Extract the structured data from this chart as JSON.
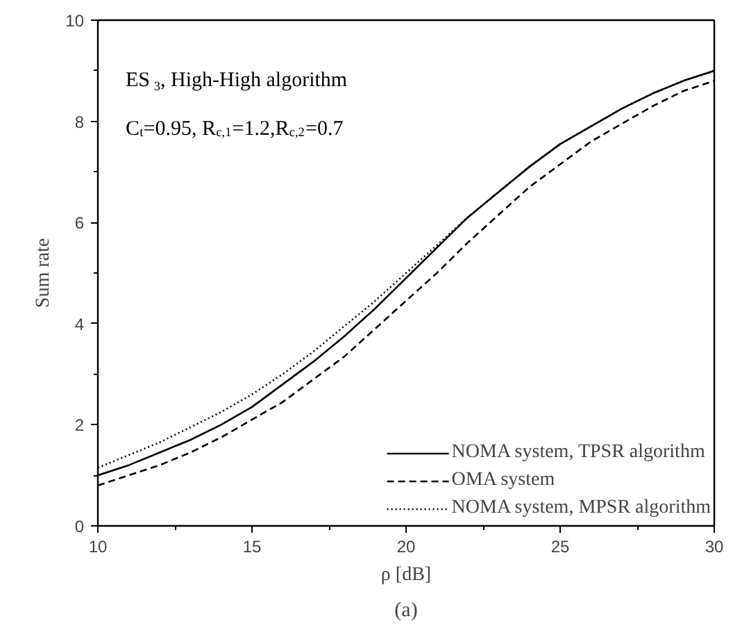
{
  "chart_data": {
    "type": "line",
    "xlabel": "ρ [dB]",
    "ylabel": "Sum rate",
    "annotations": [
      {
        "text": "ES$_{3}$, High-High algorithm"
      },
      {
        "text": "C$_{t}$=0.95, R$_{c,1}$=1.2,R$_{c,2}$=0.7"
      },
      {
        "text": "(a)"
      }
    ],
    "x": [
      10,
      11,
      12,
      13,
      14,
      15,
      16,
      17,
      18,
      19,
      20,
      21,
      22,
      23,
      24,
      25,
      26,
      27,
      28,
      29,
      30
    ],
    "series": [
      {
        "name": "NOMA system, TPSR algorithm",
        "color": "#000000",
        "line_style": "solid",
        "values": [
          1.0,
          1.2,
          1.45,
          1.7,
          2.0,
          2.35,
          2.8,
          3.25,
          3.75,
          4.3,
          4.9,
          5.5,
          6.1,
          6.6,
          7.1,
          7.55,
          7.9,
          8.25,
          8.55,
          8.8,
          9.0
        ]
      },
      {
        "name": "OMA system",
        "color": "#000000",
        "line_style": "dashed",
        "values": [
          0.8,
          1.0,
          1.2,
          1.45,
          1.75,
          2.1,
          2.45,
          2.9,
          3.35,
          3.9,
          4.45,
          5.0,
          5.6,
          6.15,
          6.7,
          7.15,
          7.6,
          7.95,
          8.3,
          8.6,
          8.8
        ]
      },
      {
        "name": "NOMA system, MPSR algorithm",
        "color": "#000000",
        "line_style": "dotted",
        "values": [
          1.15,
          1.4,
          1.65,
          1.95,
          2.25,
          2.6,
          3.0,
          3.45,
          3.95,
          4.45,
          5.0,
          5.55,
          6.1,
          6.6,
          7.1,
          7.55,
          7.9,
          8.25,
          8.55,
          8.8,
          9.0
        ]
      }
    ],
    "xlim": [
      10,
      30
    ],
    "ylim": [
      0,
      10
    ],
    "xticks": [
      10,
      15,
      20,
      25,
      30
    ],
    "yticks": [
      0,
      2,
      4,
      6,
      8,
      10
    ],
    "grid": false,
    "legend": "bottom right"
  }
}
